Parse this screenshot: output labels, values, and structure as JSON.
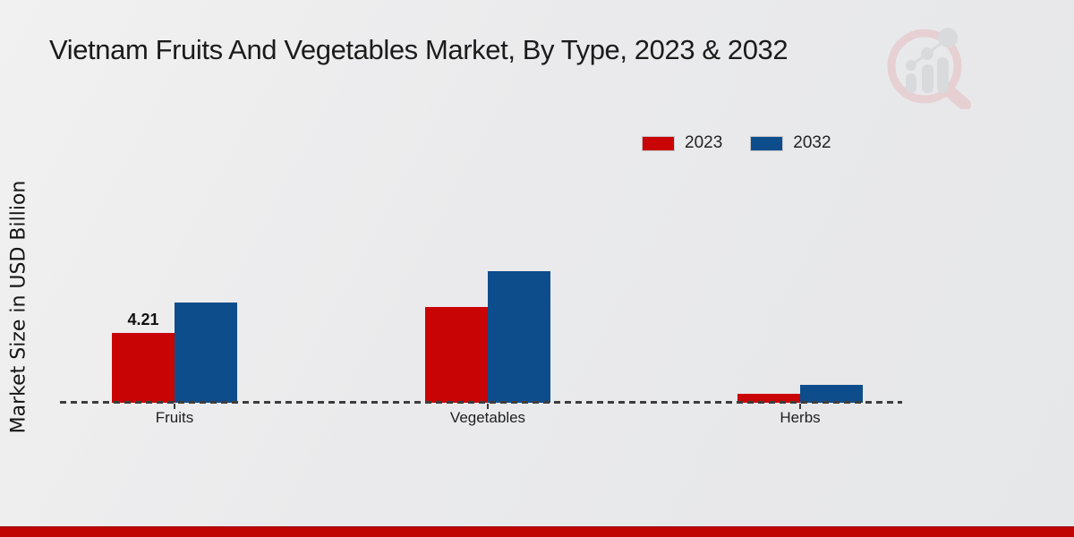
{
  "chart_data": {
    "type": "bar",
    "title": "Vietnam Fruits And Vegetables Market, By Type, 2023 & 2032",
    "ylabel": "Market Size in USD Billion",
    "xlabel": "",
    "categories": [
      "Fruits",
      "Vegetables",
      "Herbs"
    ],
    "series": [
      {
        "name": "2023",
        "color": "#c90404",
        "values": [
          4.21,
          5.78,
          0.54
        ]
      },
      {
        "name": "2032",
        "color": "#0e4d8c",
        "values": [
          6.05,
          7.94,
          1.08
        ]
      }
    ],
    "point_labels": [
      {
        "category_index": 0,
        "series_index": 0,
        "text": "4.21"
      }
    ],
    "ylim": [
      0,
      8.5
    ],
    "grid": false,
    "legend_position": "top-right",
    "baseline_style": "dashed"
  },
  "branding": {
    "watermark_icon": "magnifier-barchart-logo",
    "footer_bar_color": "#c00404",
    "watermark_ring_color": "#e5bcc0",
    "watermark_bar_color": "#cdced2"
  }
}
